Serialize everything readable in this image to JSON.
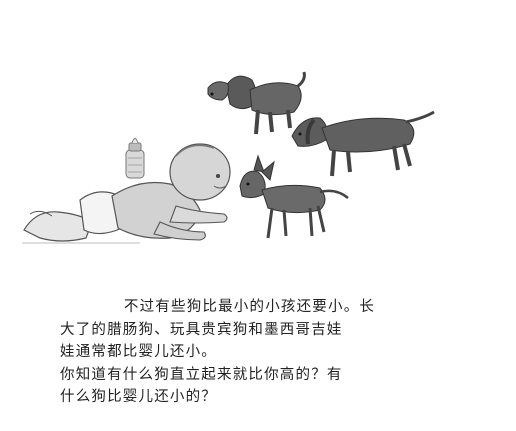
{
  "paragraphs": [
    {
      "lines": [
        "不过有些狗比最小的小孩还要小。长",
        "大了的腊肠狗、玩具贵宾狗和墨西哥吉娃",
        "娃通常都比婴儿还小。"
      ]
    },
    {
      "lines": [
        "你知道有什么狗直立起来就比你高的？有",
        "什么狗比婴儿还小的？"
      ]
    }
  ],
  "illustration": {
    "subjects": [
      "baby",
      "milk-bottle",
      "poodle",
      "dachshund",
      "chihuahua"
    ],
    "colors": {
      "ink": "#3a3a3a",
      "baby_shade": "#cfcfcf",
      "dog_shade": "#5a5a5a"
    }
  }
}
